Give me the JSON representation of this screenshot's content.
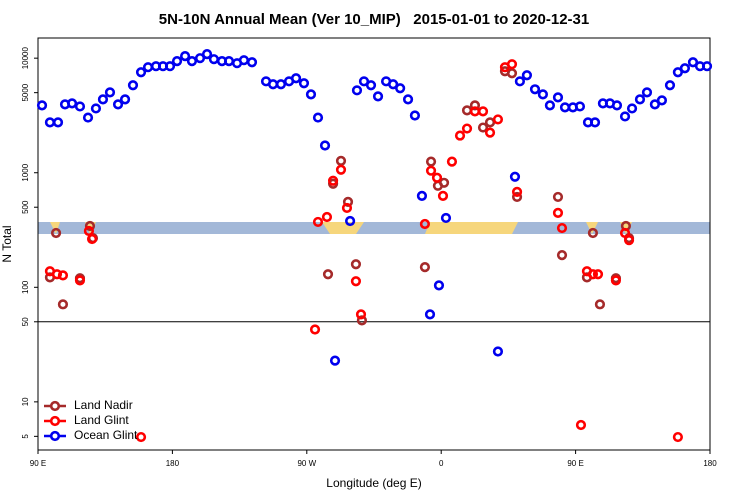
{
  "chart_data": {
    "type": "scatter",
    "title": "5N-10N Annual Mean (Ver 10_MIP)   2015-01-01 to 2020-12-31",
    "x_label": "Longitude (deg E)",
    "y_label": "N Total",
    "xlim": [
      90,
      540
    ],
    "xticks": [
      {
        "value": 90,
        "label": "90 E"
      },
      180,
      {
        "value": 270,
        "label": "90 W"
      },
      {
        "value": 360,
        "label": "0"
      },
      {
        "value": 450,
        "label": "90 E"
      },
      {
        "value": 540,
        "label": "180"
      }
    ],
    "ylim": [
      3.8,
      15000
    ],
    "yticks": [
      5,
      10,
      50,
      100,
      500,
      1000,
      5000,
      10000
    ],
    "log_y": true,
    "reference_line": 50,
    "legend": "bottom-left",
    "series": [
      {
        "name": "Land Nadir",
        "color": "#a52a2a",
        "x": [
          98.0,
          102.1,
          106.7,
          118.1,
          124.8,
          126.8,
          284.2,
          287.6,
          292.9,
          297.6,
          302.9,
          306.9,
          349.1,
          353.2,
          357.8,
          361.9,
          377.3,
          382.6,
          388.0,
          392.7,
          402.7,
          407.4,
          410.8,
          438.2,
          440.9,
          457.6,
          461.6,
          466.3,
          477.0,
          483.7,
          485.8
        ],
        "values": [
          122,
          298,
          71,
          120,
          343,
          269,
          130,
          801,
          1270,
          557,
          159,
          51.4,
          150,
          1250,
          769,
          817,
          3500,
          3870,
          2480,
          2750,
          7690,
          7380,
          615,
          615,
          191,
          122,
          298,
          71,
          120,
          343,
          269
        ]
      },
      {
        "name": "Land Glint",
        "color": "#ff0000",
        "x": [
          98.0,
          102.7,
          106.7,
          118.1,
          124.1,
          126.2,
          159.0,
          275.5,
          277.5,
          283.5,
          287.6,
          292.9,
          296.9,
          302.9,
          306.3,
          349.1,
          353.2,
          357.2,
          361.2,
          367.2,
          372.6,
          377.3,
          382.6,
          388.0,
          392.7,
          398.0,
          402.7,
          407.4,
          410.8,
          438.2,
          440.9,
          453.6,
          457.6,
          461.6,
          465.0,
          477.0,
          483.1,
          485.8,
          518.5
        ],
        "values": [
          138,
          130,
          127,
          115,
          310,
          264,
          4.93,
          42.8,
          372,
          411,
          851,
          1062,
          493,
          113,
          58,
          357,
          1042,
          904,
          628,
          1250,
          2110,
          2430,
          3430,
          3430,
          2240,
          2920,
          8340,
          8860,
          681,
          446,
          329,
          6.28,
          138,
          130,
          130,
          115,
          298,
          258,
          4.93
        ]
      },
      {
        "name": "Ocean Glint",
        "color": "#0000ee",
        "x": [
          92.7,
          98.0,
          103.4,
          108.1,
          112.8,
          118.1,
          123.5,
          128.8,
          133.5,
          138.2,
          143.6,
          148.3,
          153.6,
          159.0,
          163.7,
          169.0,
          173.7,
          178.4,
          183.1,
          188.5,
          193.1,
          198.5,
          203.2,
          207.8,
          213.2,
          217.9,
          223.3,
          227.9,
          233.3,
          242.7,
          247.4,
          252.7,
          258.1,
          262.8,
          268.1,
          272.8,
          277.5,
          282.2,
          288.9,
          299.0,
          303.6,
          308.3,
          313.0,
          317.7,
          323.1,
          327.8,
          332.5,
          337.8,
          342.4,
          347.1,
          352.5,
          358.5,
          363.2,
          398.0,
          409.4,
          412.7,
          417.4,
          422.8,
          428.1,
          432.8,
          438.2,
          442.9,
          448.2,
          452.9,
          458.3,
          463.0,
          468.3,
          473.0,
          477.7,
          483.1,
          487.8,
          493.1,
          497.8,
          503.1,
          507.8,
          513.2,
          518.5,
          523.2,
          528.6,
          533.3,
          538.0
        ],
        "values": [
          3870,
          2750,
          2750,
          3950,
          4030,
          3790,
          3030,
          3640,
          4370,
          5030,
          3950,
          4370,
          5800,
          7540,
          8340,
          8510,
          8510,
          8510,
          9420,
          10420,
          9420,
          10000,
          10840,
          9800,
          9420,
          9420,
          9040,
          9600,
          9220,
          6280,
          5920,
          5920,
          6280,
          6680,
          6040,
          4830,
          3030,
          1730,
          22.9,
          379,
          5240,
          6280,
          5800,
          4640,
          6280,
          5920,
          5460,
          4370,
          3160,
          628,
          58,
          104,
          403,
          27.5,
          923,
          6280,
          7100,
          5350,
          4830,
          3870,
          4550,
          3720,
          3720,
          3790,
          2750,
          2750,
          4030,
          4030,
          3870,
          3100,
          3640,
          4370,
          5030,
          3950,
          4280,
          5800,
          7540,
          8170,
          9220,
          8510,
          8510
        ]
      }
    ]
  }
}
